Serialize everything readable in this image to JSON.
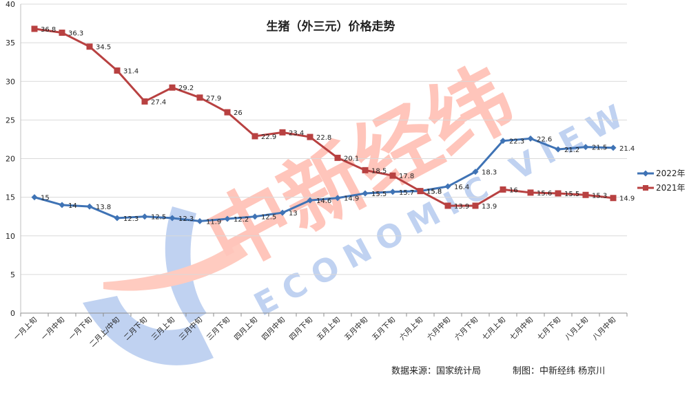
{
  "chart_data": {
    "type": "line",
    "title": "生猪（外三元）价格走势",
    "xlabel": "",
    "ylabel": "",
    "ylim": [
      0,
      40
    ],
    "yticks": [
      0,
      5,
      10,
      15,
      20,
      25,
      30,
      35,
      40
    ],
    "grid": true,
    "legend_position": "right",
    "categories": [
      "一月上旬",
      "一月中旬",
      "一月下旬",
      "二月上/中旬",
      "二月下旬",
      "三月上旬",
      "三月中旬",
      "三月下旬",
      "四月上旬",
      "四月中旬",
      "四月下旬",
      "五月上旬",
      "五月中旬",
      "五月下旬",
      "六月上旬",
      "六月中旬",
      "六月下旬",
      "七月上旬",
      "七月中旬",
      "七月下旬",
      "八月上旬",
      "八月中旬"
    ],
    "series": [
      {
        "name": "2022年",
        "color": "#3f73b5",
        "marker": "diamond",
        "values": [
          15,
          14,
          13.8,
          12.3,
          12.5,
          12.3,
          11.9,
          12.2,
          12.5,
          13,
          14.6,
          14.9,
          15.5,
          15.7,
          15.8,
          16.4,
          18.3,
          22.3,
          22.6,
          21.2,
          21.5,
          21.4
        ]
      },
      {
        "name": "2021年",
        "color": "#b84141",
        "marker": "square",
        "values": [
          36.8,
          36.3,
          34.5,
          31.4,
          27.4,
          29.2,
          27.9,
          26,
          22.9,
          23.4,
          22.8,
          20.1,
          18.5,
          17.8,
          15.8,
          13.9,
          13.9,
          16,
          15.6,
          15.5,
          15.3,
          14.9
        ]
      }
    ],
    "source_note": "数据来源：国家统计局",
    "credit": "制图：中新经纬  杨京川",
    "watermark": {
      "text": "中新经纬",
      "subtext": "ECONOMIC VIEW"
    }
  }
}
